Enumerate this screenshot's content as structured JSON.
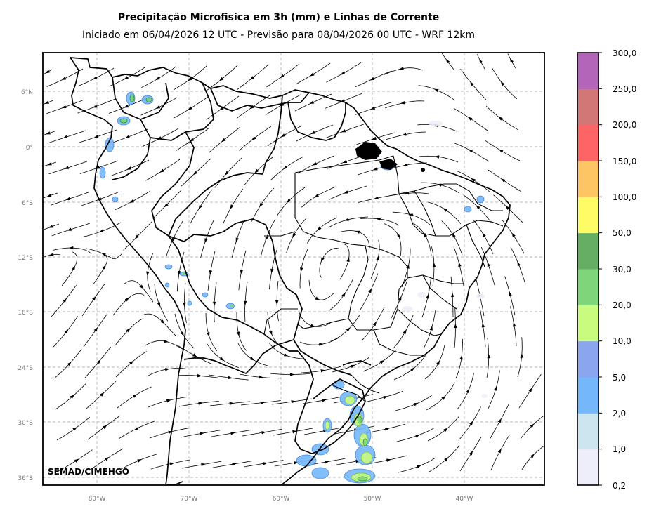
{
  "header": {
    "title": "Precipitação Microfisica em 3h (mm) e Linhas de Corrente",
    "subtitle": "Iniciado em 06/04/2026 12 UTC - Previsão para 08/04/2026 00 UTC - WRF 12km"
  },
  "map": {
    "lat_ticks": [
      "6°N",
      "0°",
      "6°S",
      "12°S",
      "18°S",
      "24°S",
      "30°S",
      "36°S"
    ],
    "lon_ticks": [
      "80°W",
      "70°W",
      "60°W",
      "50°W",
      "40°W"
    ],
    "credit": "SEMAD/CIMEHGO",
    "gridlines": true
  },
  "colorbar": {
    "labels": [
      "0,2",
      "1,0",
      "2,0",
      "5,0",
      "10,0",
      "20,0",
      "30,0",
      "50,0",
      "100,0",
      "150,0",
      "200,0",
      "250,0",
      "300,0"
    ],
    "colors": [
      "#eeeefa",
      "#cde5ef",
      "#74b8fb",
      "#8ba5ee",
      "#c9fb7e",
      "#7ed57a",
      "#66ae63",
      "#fdfb66",
      "#fec564",
      "#fd6465",
      "#d27776",
      "#b365b9"
    ]
  }
}
